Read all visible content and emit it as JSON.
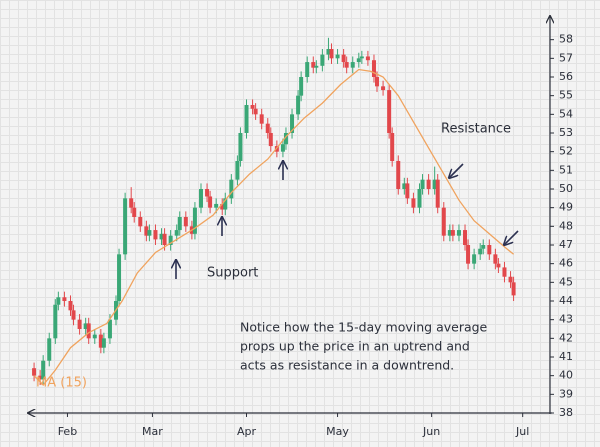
{
  "chart_data": {
    "type": "candlestick",
    "x": [
      21,
      23,
      24,
      26,
      28,
      29,
      31,
      33,
      34,
      36,
      38,
      39,
      41,
      43,
      44,
      46,
      48,
      49,
      51,
      53,
      54,
      56,
      58,
      59,
      61,
      63,
      64,
      66,
      68,
      69,
      71,
      73,
      74,
      76,
      78,
      79,
      81,
      83,
      84,
      86,
      88,
      89,
      91,
      93,
      94,
      96,
      98,
      99,
      101,
      103,
      104,
      106,
      108,
      109,
      111,
      113,
      114,
      116,
      118,
      119,
      121,
      123,
      124,
      126,
      128,
      129,
      131,
      133,
      134,
      136,
      138,
      139,
      141,
      143,
      144,
      146,
      148,
      149,
      151,
      153,
      154,
      156,
      158,
      159,
      161,
      163,
      164,
      166,
      168,
      169,
      171,
      173,
      174,
      176,
      178,
      179
    ],
    "open": [
      40.4,
      40,
      39.8,
      40.8,
      42,
      43.8,
      44.2,
      44,
      43.5,
      43,
      42.5,
      42.8,
      42,
      42.2,
      41.5,
      42,
      43,
      44,
      46.5,
      49.5,
      49,
      48.5,
      48,
      47.5,
      47.8,
      47.3,
      47.6,
      47,
      47.5,
      47.8,
      48.5,
      48,
      47.6,
      49,
      50,
      49.6,
      49,
      49.2,
      48.9,
      49.5,
      50.5,
      51.5,
      53,
      54.5,
      54.3,
      54,
      53.5,
      53,
      52.3,
      52,
      52.4,
      53,
      54,
      55,
      56,
      56.8,
      56.5,
      56.6,
      57.2,
      57.5,
      57,
      57.2,
      56.8,
      56.5,
      56.8,
      57,
      57.1,
      56.9,
      56,
      55.5,
      55.3,
      53,
      51.5,
      50,
      50.3,
      49.5,
      49,
      50,
      50.5,
      50,
      50.5,
      49,
      47.5,
      47.8,
      47.5,
      47.8,
      47,
      46,
      46.5,
      46.8,
      47,
      46.5,
      46,
      45.8,
      45.3,
      45
    ],
    "high": [
      40.7,
      40.3,
      41.1,
      42.3,
      44.1,
      44.5,
      44.5,
      44.3,
      43.8,
      43.3,
      43.1,
      43.1,
      42.5,
      42.5,
      42.3,
      43.3,
      44.3,
      46.8,
      49.8,
      50.1,
      49.3,
      48.8,
      48.3,
      48.1,
      48.1,
      47.9,
      47.9,
      47.8,
      48.1,
      48.8,
      48.8,
      48.3,
      49.3,
      50.3,
      50.3,
      49.9,
      49.5,
      49.5,
      49.8,
      50.8,
      51.8,
      53.3,
      54.8,
      54.8,
      54.6,
      54.3,
      53.8,
      53.3,
      52.6,
      52.7,
      53.3,
      54.3,
      55.3,
      56.3,
      57.1,
      57.1,
      56.9,
      57.5,
      58.1,
      57.8,
      57.5,
      57.5,
      57.1,
      57.1,
      57.3,
      57.4,
      57.4,
      57.2,
      56.3,
      55.8,
      55.6,
      53.3,
      51.8,
      50.6,
      50.6,
      49.8,
      50.3,
      50.8,
      50.8,
      51.2,
      50.8,
      49.3,
      48.1,
      48.1,
      48.1,
      48.1,
      47.3,
      46.8,
      47.1,
      47.3,
      47.3,
      46.8,
      46.3,
      46.1,
      45.6,
      45.3
    ],
    "low": [
      39.7,
      39.5,
      39.5,
      40.5,
      41.7,
      43.5,
      43.7,
      43.2,
      42.7,
      42.2,
      42.2,
      41.7,
      41.7,
      41.2,
      41.2,
      41.7,
      42.7,
      43.7,
      46.2,
      48.7,
      48.2,
      47.7,
      47.2,
      47.2,
      47,
      47,
      46.7,
      46.7,
      47.2,
      47.5,
      47.7,
      47.3,
      47.3,
      48.7,
      49.3,
      48.7,
      48.7,
      48.6,
      48.6,
      49.2,
      50.2,
      51.2,
      52.7,
      54,
      53.7,
      53.2,
      52.7,
      52,
      51.7,
      51.7,
      52.1,
      52.7,
      53.7,
      54.7,
      55.7,
      56.2,
      56.2,
      56.3,
      56.9,
      56.7,
      56.7,
      56.5,
      56.2,
      56.2,
      56.5,
      56.7,
      56.6,
      55.7,
      55.2,
      55,
      52.7,
      51.2,
      49.7,
      49.7,
      49.2,
      48.7,
      48.7,
      49.7,
      49.7,
      49.7,
      48.7,
      47.2,
      47.2,
      47.2,
      47.2,
      46.7,
      45.7,
      45.7,
      46.2,
      46.5,
      46.2,
      45.7,
      45.5,
      45,
      44.7,
      44
    ],
    "close": [
      40,
      39.8,
      40.8,
      42,
      43.8,
      44.2,
      44,
      43.5,
      43,
      42.5,
      42.8,
      42,
      42.2,
      41.5,
      42,
      43,
      44,
      46.5,
      49.5,
      49,
      48.5,
      48,
      47.5,
      47.8,
      47.3,
      47.6,
      47,
      47.5,
      47.8,
      48.5,
      48,
      47.6,
      49,
      50,
      49.6,
      49,
      49.2,
      48.9,
      49.5,
      50.5,
      51.5,
      53,
      54.5,
      54.3,
      54,
      53.5,
      53,
      52.3,
      52,
      52.4,
      53,
      54,
      55,
      56,
      56.8,
      56.5,
      56.6,
      57.2,
      57.5,
      57,
      57.2,
      56.8,
      56.5,
      56.8,
      57,
      57.1,
      56.9,
      56,
      55.5,
      55.3,
      53,
      51.5,
      50,
      50.3,
      49.5,
      49,
      50,
      50.5,
      50,
      50.5,
      49,
      47.5,
      47.8,
      47.5,
      47.8,
      47,
      46,
      46.5,
      46.8,
      47,
      46.5,
      46,
      45.8,
      45.3,
      45,
      44.3
    ],
    "up_color": "#3aa776",
    "down_color": "#e2474b",
    "series": [
      {
        "name": "MA (15)",
        "color": "#f0a35e",
        "x": [
          21,
          24,
          28,
          33,
          39,
          45,
          50,
          55,
          61,
          68,
          74,
          80,
          86,
          92,
          98,
          104,
          110,
          116,
          122,
          128,
          132,
          136,
          141,
          146,
          151,
          156,
          161,
          166,
          171,
          176,
          179
        ],
        "values": [
          40,
          39.5,
          40.3,
          41.5,
          42.3,
          42.8,
          44,
          45.5,
          46.6,
          47.3,
          47.9,
          48.6,
          49.8,
          50.8,
          51.6,
          52.8,
          53.8,
          54.6,
          55.6,
          56.4,
          56.3,
          56,
          55,
          53.6,
          52.2,
          50.8,
          49.4,
          48.3,
          47.6,
          46.9,
          46.5
        ]
      }
    ],
    "xlim": [
      19,
      191
    ],
    "xticks": [
      {
        "value": 32,
        "label": "Feb"
      },
      {
        "value": 60,
        "label": "Mar"
      },
      {
        "value": 91,
        "label": "Apr"
      },
      {
        "value": 121,
        "label": "May"
      },
      {
        "value": 152,
        "label": "Jun"
      },
      {
        "value": 182,
        "label": "Jul"
      }
    ],
    "ylim": [
      38,
      59
    ],
    "yticks": [
      38,
      39,
      40,
      41,
      42,
      43,
      44,
      45,
      46,
      47,
      48,
      49,
      50,
      51,
      52,
      53,
      54,
      55,
      56,
      57,
      58
    ],
    "annotations": {
      "support": "Support",
      "resistance": "Resistance",
      "note": [
        "Notice how the 15-day moving average",
        "props up the price in an uptrend and",
        "acts as resistance in a downtrend."
      ]
    }
  }
}
